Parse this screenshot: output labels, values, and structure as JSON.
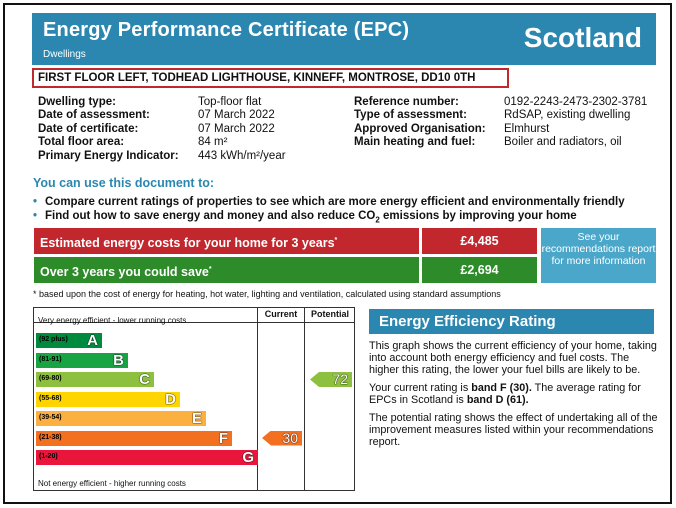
{
  "header": {
    "title": "Energy Performance Certificate (EPC)",
    "subtitle": "Dwellings",
    "country": "Scotland"
  },
  "address": "FIRST FLOOR LEFT, TODHEAD LIGHTHOUSE, KINNEFF, MONTROSE, DD10 0TH",
  "details_left": [
    {
      "label": "Dwelling type:",
      "value": "Top-floor flat"
    },
    {
      "label": "Date of assessment:",
      "value": "07 March 2022"
    },
    {
      "label": "Date of certificate:",
      "value": "07 March 2022"
    },
    {
      "label": "Total floor area:",
      "value": "84 m²"
    },
    {
      "label": "Primary Energy Indicator:",
      "value": "443 kWh/m²/year"
    }
  ],
  "details_right": [
    {
      "label": "Reference number:",
      "value": "0192-2243-2473-2302-3781"
    },
    {
      "label": "Type of assessment:",
      "value": "RdSAP, existing dwelling"
    },
    {
      "label": "Approved Organisation:",
      "value": "Elmhurst"
    },
    {
      "label": "Main heating and fuel:",
      "value": "Boiler and radiators, oil"
    }
  ],
  "use_heading": "You can use this document to:",
  "bullets": {
    "b1": "Compare current ratings of properties to see which are more energy efficient and environmentally friendly",
    "b2_pre": "Find out how to save energy and money and also reduce CO",
    "b2_sub": "2",
    "b2_post": " emissions by improving your home",
    "bullet_char": "•"
  },
  "costs": {
    "estimated_label": "Estimated energy costs for your home for 3 years",
    "estimated_value": "£4,485",
    "save_label": "Over 3 years you could save",
    "save_value": "£2,694",
    "asterisk": "*",
    "see_text": "See your recommendations report for more information"
  },
  "footnote": "* based upon the cost of energy for heating, hot water, lighting and ventilation, calculated using standard assumptions",
  "rating_chart": {
    "col_current": "Current",
    "col_potential": "Potential",
    "top_text": "Very energy efficient - lower running costs",
    "bottom_text": "Not energy efficient - higher running costs",
    "bands": [
      {
        "range": "(92 plus)",
        "letter": "A",
        "color": "#008a3e"
      },
      {
        "range": "(81-91)",
        "letter": "B",
        "color": "#19a444"
      },
      {
        "range": "(69-80)",
        "letter": "C",
        "color": "#8dc03f"
      },
      {
        "range": "(55-68)",
        "letter": "D",
        "color": "#ffd500"
      },
      {
        "range": "(39-54)",
        "letter": "E",
        "color": "#fbb040"
      },
      {
        "range": "(21-38)",
        "letter": "F",
        "color": "#f37021"
      },
      {
        "range": "(1-20)",
        "letter": "G",
        "color": "#e9153b"
      }
    ],
    "current": {
      "value": "30",
      "band_index": 5,
      "color": "#f37021"
    },
    "potential": {
      "value": "72",
      "band_index": 2,
      "color": "#8dc03f"
    }
  },
  "eer": {
    "heading": "Energy Efficiency Rating",
    "p1": "This graph shows the current efficiency of your home, taking into account both energy efficiency and fuel costs. The higher this rating, the lower your fuel bills are likely to be.",
    "p2_a": "Your current rating is ",
    "p2_b": "band F (30).",
    "p2_c": " The average rating for EPCs in Scotland is ",
    "p2_d": "band D (61).",
    "p3": "The potential rating shows the effect of undertaking all of the improvement measures listed within your recommendations report."
  }
}
